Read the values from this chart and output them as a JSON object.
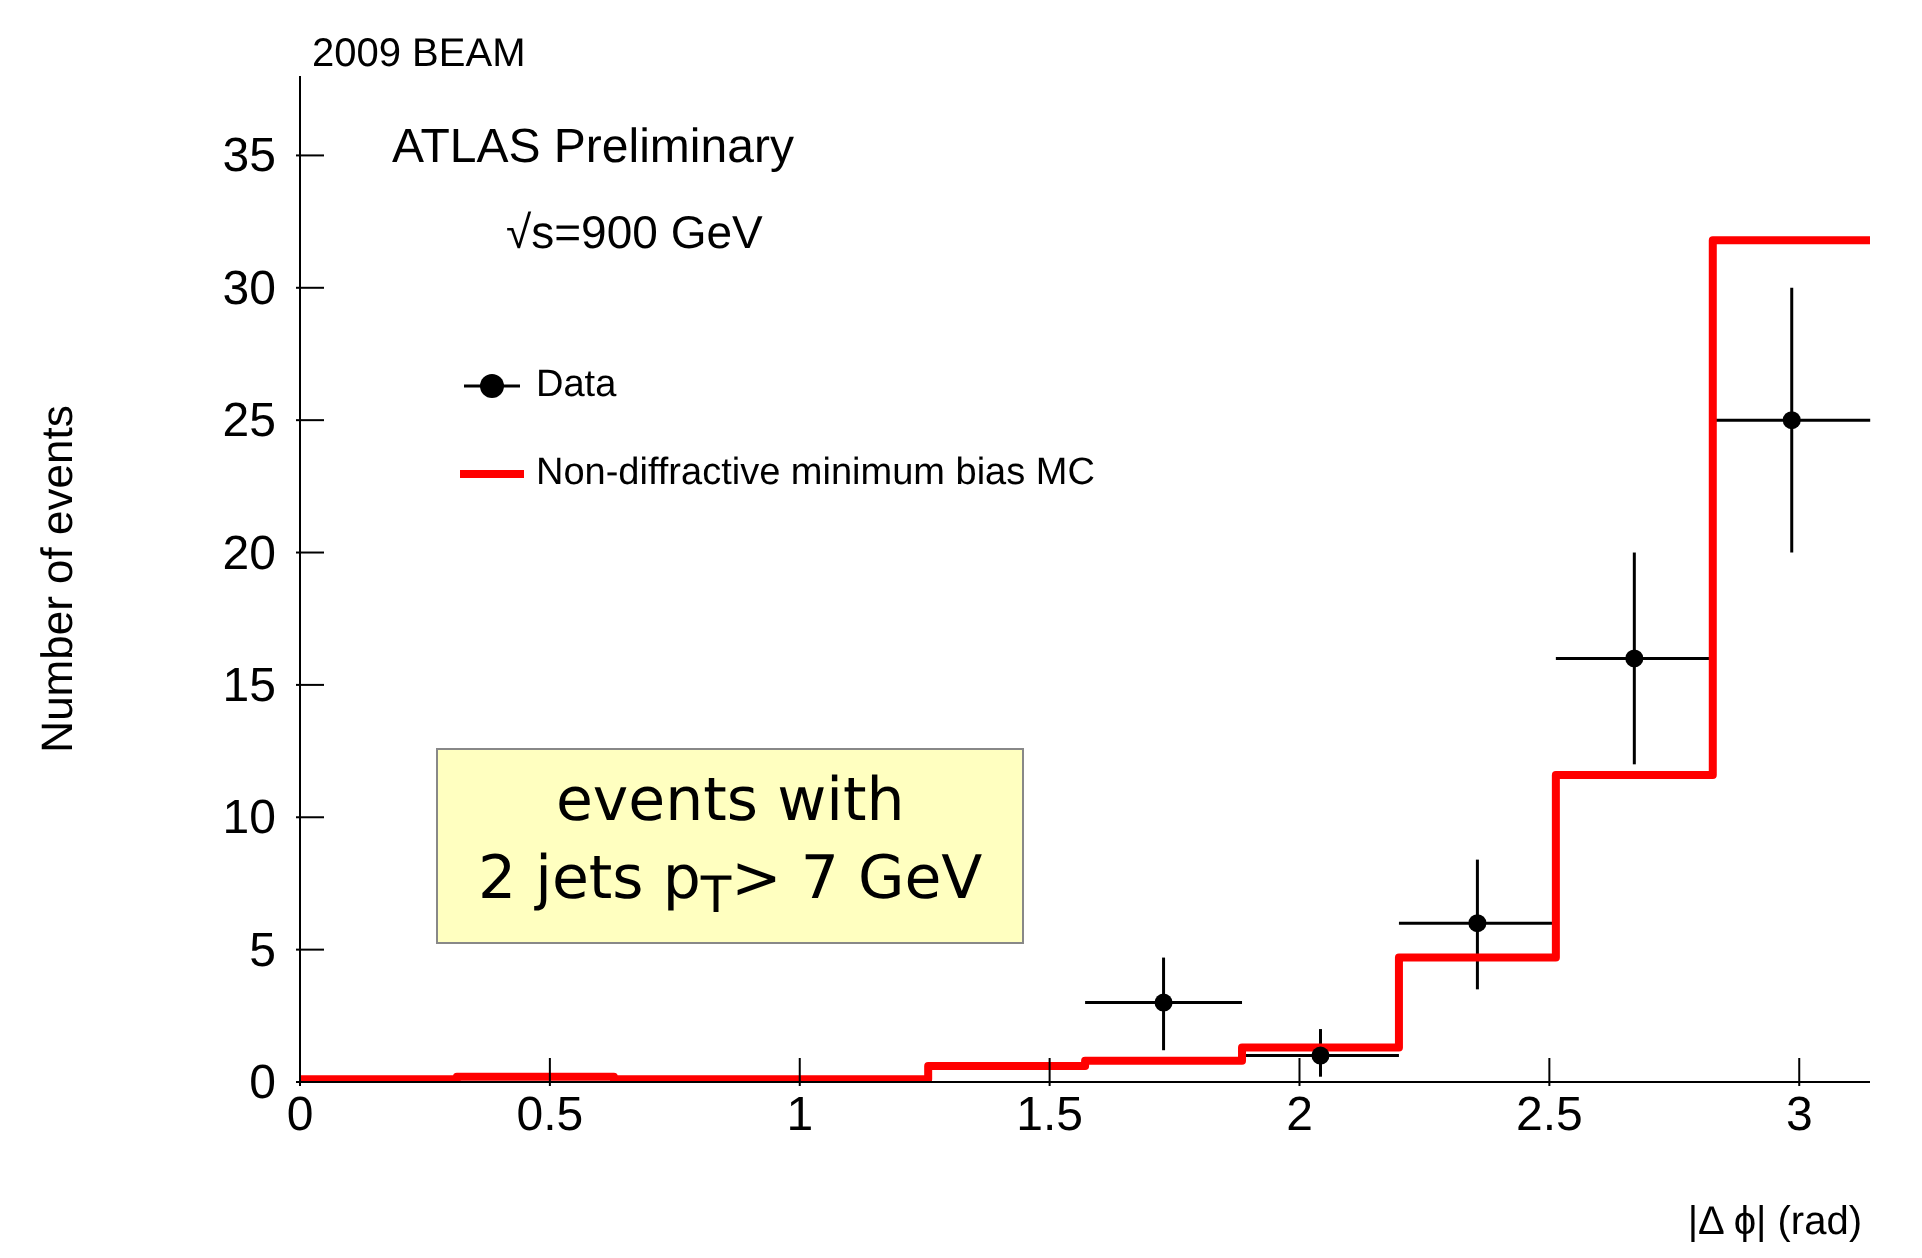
{
  "chart_data": {
    "type": "step",
    "xlabel": "|Δ ϕ| (rad)",
    "ylabel": "Number of events",
    "annotations": [
      "2009 BEAM",
      "ATLAS Preliminary",
      "√s=900 GeV",
      "events with\n2 jets p$_{T}$> 7 GeV"
    ],
    "xlim": [
      0,
      3.1416
    ],
    "ylim": [
      0,
      38
    ],
    "xticks": [
      0,
      0.5,
      1,
      1.5,
      2,
      2.5,
      3
    ],
    "yticks": [
      0,
      5,
      10,
      15,
      20,
      25,
      30,
      35
    ],
    "grid": false,
    "legend": "top left",
    "series": [
      {
        "name": "Data",
        "type": "scatter",
        "color": "#000000",
        "marker": "circle",
        "x": [
          1.728,
          2.042,
          2.356,
          2.67,
          2.985
        ],
        "values": [
          3,
          1,
          6,
          16,
          25
        ],
        "errors": [
          [
            1.2,
            4.7
          ],
          [
            0.2,
            2
          ],
          [
            3.5,
            8.4
          ],
          [
            12,
            20
          ],
          [
            20,
            30
          ]
        ],
        "xerrors": [
          0.157,
          0.157,
          0.157,
          0.157,
          0.157
        ]
      },
      {
        "name": "Non-diffractive minimum bias MC",
        "color": "#ff0000",
        "x": [
          0,
          0.314,
          0.628,
          0.942,
          1.257,
          1.571,
          1.885,
          2.199,
          2.513,
          2.827,
          3.1416
        ],
        "values": [
          0.1,
          0.2,
          0.1,
          0.1,
          0.6,
          0.8,
          1.3,
          4.7,
          11.6,
          31.8,
          31.8
        ]
      }
    ]
  }
}
